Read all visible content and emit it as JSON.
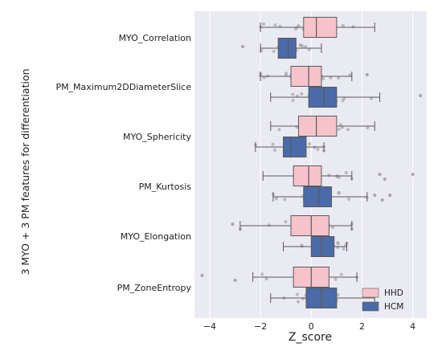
{
  "chart_data": {
    "type": "boxplot",
    "orientation": "horizontal",
    "xlabel": "Z_score",
    "ylabel": "3 MYO + 3 PM features for differentiation",
    "xlim": [
      -4.6,
      4.55
    ],
    "xticks": [
      "−4",
      "−2",
      "0",
      "2",
      "4"
    ],
    "xtick_values": [
      -4,
      -2,
      0,
      2,
      4
    ],
    "grid": true,
    "legend_position": "lower-right",
    "categories": [
      "MYO_Correlation",
      "PM_Maximum2DDiameterSlice",
      "MYO_Sphericity",
      "PM_Kurtosis",
      "MYO_Elongation",
      "PM_ZoneEntropy"
    ],
    "series": [
      {
        "name": "HHD",
        "color": "#f6c3cb",
        "stats": [
          {
            "whisker_low": -2.0,
            "q1": -0.3,
            "median": 0.2,
            "q3": 1.0,
            "whisker_high": 2.5
          },
          {
            "whisker_low": -2.0,
            "q1": -0.8,
            "median": -0.1,
            "q3": 0.4,
            "whisker_high": 1.6
          },
          {
            "whisker_low": -1.6,
            "q1": -0.5,
            "median": 0.2,
            "q3": 1.0,
            "whisker_high": 2.5
          },
          {
            "whisker_low": -1.9,
            "q1": -0.7,
            "median": -0.1,
            "q3": 0.4,
            "whisker_high": 1.6
          },
          {
            "whisker_low": -2.8,
            "q1": -0.8,
            "median": 0.0,
            "q3": 0.7,
            "whisker_high": 1.6
          },
          {
            "whisker_low": -2.3,
            "q1": -0.7,
            "median": 0.0,
            "q3": 0.7,
            "whisker_high": 1.8
          }
        ]
      },
      {
        "name": "HCM",
        "color": "#4a6aa8",
        "stats": [
          {
            "whisker_low": -2.0,
            "q1": -1.3,
            "median": -0.9,
            "q3": -0.6,
            "whisker_high": 0.4
          },
          {
            "whisker_low": -1.6,
            "q1": -0.1,
            "median": 0.5,
            "q3": 1.0,
            "whisker_high": 2.7
          },
          {
            "whisker_low": -2.2,
            "q1": -1.1,
            "median": -0.8,
            "q3": -0.2,
            "whisker_high": 0.5
          },
          {
            "whisker_low": -1.5,
            "q1": -0.3,
            "median": 0.3,
            "q3": 0.8,
            "whisker_high": 2.2
          },
          {
            "whisker_low": -1.1,
            "q1": 0.0,
            "median": 0.4,
            "q3": 0.9,
            "whisker_high": 1.4
          },
          {
            "whisker_low": -1.6,
            "q1": -0.2,
            "median": 0.4,
            "q3": 1.0,
            "whisker_high": 2.5
          }
        ]
      }
    ],
    "outliers": [
      {
        "category": 0,
        "series": 1,
        "values": [
          -2.7
        ]
      },
      {
        "category": 1,
        "series": 0,
        "values": [
          2.2
        ]
      },
      {
        "category": 1,
        "series": 1,
        "values": [
          4.3
        ]
      },
      {
        "category": 3,
        "series": 0,
        "values": [
          2.7,
          2.9,
          4.0
        ]
      },
      {
        "category": 3,
        "series": 1,
        "values": [
          2.5,
          2.8,
          3.1
        ]
      },
      {
        "category": 4,
        "series": 0,
        "values": [
          -3.1
        ]
      },
      {
        "category": 5,
        "series": 0,
        "values": [
          -4.3,
          -3.0
        ]
      }
    ],
    "jitter_color": "#a9a9a9"
  }
}
